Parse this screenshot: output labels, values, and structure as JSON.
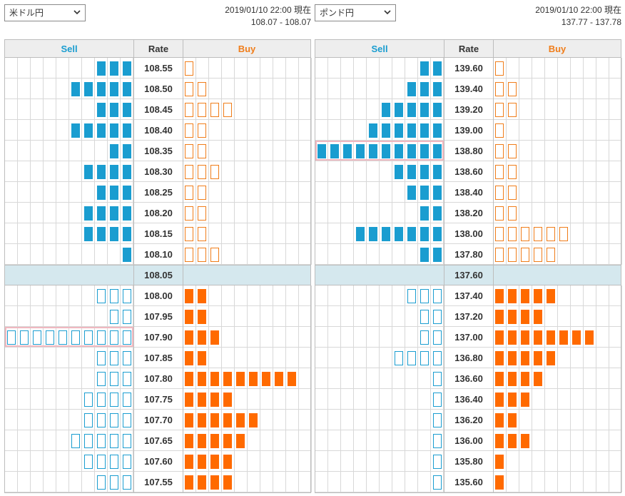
{
  "colors": {
    "sell_accent": "#1a9dd0",
    "buy_accent": "#f07d1a",
    "sell_filled": "#1a9dd0",
    "buy_filled": "#ff6a00",
    "current_row_bg": "#d5e8ee",
    "highlight_border": "#f0b8c0"
  },
  "icons": {
    "dropdown": "chevron-down-icon"
  },
  "headers": {
    "sell": "Sell",
    "rate": "Rate",
    "buy": "Buy"
  },
  "panels": [
    {
      "id": "usdjpy",
      "pair": "米ドル円",
      "timestamp": "2019/01/10 22:00 現在",
      "spread": "108.07 - 108.07",
      "current_rate": "108.05",
      "upper": [
        {
          "rate": "108.55",
          "sell": 3,
          "buy": 1
        },
        {
          "rate": "108.50",
          "sell": 5,
          "buy": 2
        },
        {
          "rate": "108.45",
          "sell": 3,
          "buy": 4
        },
        {
          "rate": "108.40",
          "sell": 5,
          "buy": 2
        },
        {
          "rate": "108.35",
          "sell": 2,
          "buy": 2
        },
        {
          "rate": "108.30",
          "sell": 4,
          "buy": 3
        },
        {
          "rate": "108.25",
          "sell": 3,
          "buy": 2
        },
        {
          "rate": "108.20",
          "sell": 4,
          "buy": 2
        },
        {
          "rate": "108.15",
          "sell": 4,
          "buy": 2
        },
        {
          "rate": "108.10",
          "sell": 1,
          "buy": 3
        }
      ],
      "lower": [
        {
          "rate": "108.00",
          "sell": 3,
          "buy": 2
        },
        {
          "rate": "107.95",
          "sell": 2,
          "buy": 2
        },
        {
          "rate": "107.90",
          "sell": 10,
          "buy": 3,
          "highlight": true
        },
        {
          "rate": "107.85",
          "sell": 3,
          "buy": 2
        },
        {
          "rate": "107.80",
          "sell": 3,
          "buy": 9
        },
        {
          "rate": "107.75",
          "sell": 4,
          "buy": 4
        },
        {
          "rate": "107.70",
          "sell": 4,
          "buy": 6
        },
        {
          "rate": "107.65",
          "sell": 5,
          "buy": 5
        },
        {
          "rate": "107.60",
          "sell": 4,
          "buy": 4
        },
        {
          "rate": "107.55",
          "sell": 3,
          "buy": 4
        }
      ]
    },
    {
      "id": "gbpjpy",
      "pair": "ポンド円",
      "timestamp": "2019/01/10 22:00 現在",
      "spread": "137.77 - 137.78",
      "current_rate": "137.60",
      "upper": [
        {
          "rate": "139.60",
          "sell": 2,
          "buy": 1
        },
        {
          "rate": "139.40",
          "sell": 3,
          "buy": 2
        },
        {
          "rate": "139.20",
          "sell": 5,
          "buy": 2
        },
        {
          "rate": "139.00",
          "sell": 6,
          "buy": 1
        },
        {
          "rate": "138.80",
          "sell": 10,
          "buy": 2,
          "highlight": true
        },
        {
          "rate": "138.60",
          "sell": 4,
          "buy": 2
        },
        {
          "rate": "138.40",
          "sell": 3,
          "buy": 2
        },
        {
          "rate": "138.20",
          "sell": 2,
          "buy": 2
        },
        {
          "rate": "138.00",
          "sell": 7,
          "buy": 6
        },
        {
          "rate": "137.80",
          "sell": 2,
          "buy": 5
        }
      ],
      "lower": [
        {
          "rate": "137.40",
          "sell": 3,
          "buy": 5
        },
        {
          "rate": "137.20",
          "sell": 2,
          "buy": 4
        },
        {
          "rate": "137.00",
          "sell": 2,
          "buy": 8
        },
        {
          "rate": "136.80",
          "sell": 4,
          "buy": 5
        },
        {
          "rate": "136.60",
          "sell": 1,
          "buy": 4
        },
        {
          "rate": "136.40",
          "sell": 1,
          "buy": 3
        },
        {
          "rate": "136.20",
          "sell": 1,
          "buy": 2
        },
        {
          "rate": "136.00",
          "sell": 1,
          "buy": 3
        },
        {
          "rate": "135.80",
          "sell": 1,
          "buy": 1
        },
        {
          "rate": "135.60",
          "sell": 1,
          "buy": 1
        }
      ]
    }
  ]
}
